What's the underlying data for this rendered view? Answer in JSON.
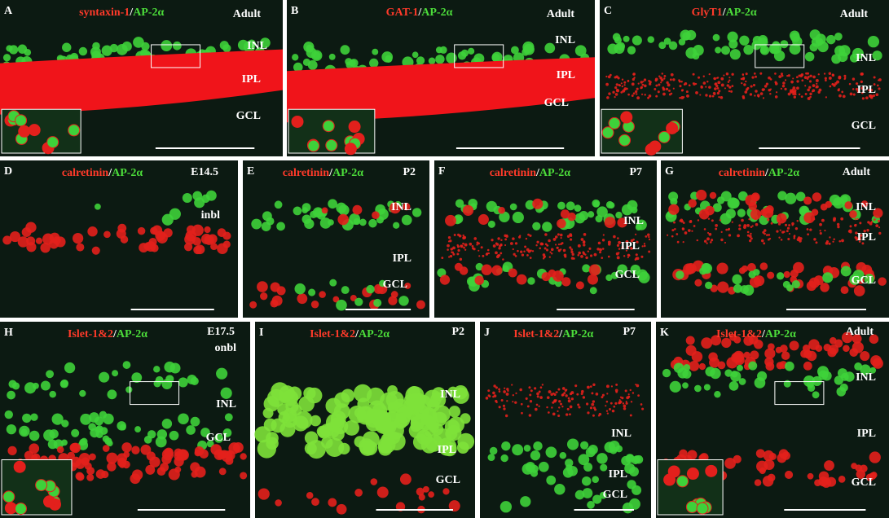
{
  "panels": [
    {
      "letter": "A",
      "red": "syntaxin-1",
      "sep": "/",
      "green": "AP-2α",
      "stage": "Adult",
      "layers": [
        "INL",
        "IPL",
        "GCL"
      ]
    },
    {
      "letter": "B",
      "red": "GAT-1",
      "sep": "/",
      "green": "AP-2α",
      "stage": "Adult",
      "layers": [
        "INL",
        "IPL",
        "GCL"
      ]
    },
    {
      "letter": "C",
      "red": "GlyT1",
      "sep": "/",
      "green": "AP-2α",
      "stage": "Adult",
      "layers": [
        "INL",
        "IPL",
        "GCL"
      ]
    },
    {
      "letter": "D",
      "red": "calretinin",
      "sep": "/",
      "green": "AP-2α",
      "stage": "E14.5",
      "layers": [
        "inbl"
      ]
    },
    {
      "letter": "E",
      "red": "calretinin",
      "sep": "/",
      "green": "AP-2α",
      "stage": "P2",
      "layers": [
        "INL",
        "IPL",
        "GCL"
      ]
    },
    {
      "letter": "F",
      "red": "calretinin",
      "sep": "/",
      "green": "AP-2α",
      "stage": "P7",
      "layers": [
        "INL",
        "IPL",
        "GCL"
      ]
    },
    {
      "letter": "G",
      "red": "calretinin",
      "sep": "/",
      "green": "AP-2α",
      "stage": "Adult",
      "layers": [
        "INL",
        "IPL",
        "GCL"
      ]
    },
    {
      "letter": "H",
      "red": "Islet-1&2",
      "sep": "/",
      "green": "AP-2α",
      "stage": "E17.5",
      "layers": [
        "onbl",
        "INL",
        "GCL"
      ]
    },
    {
      "letter": "I",
      "red": "Islet-1&2",
      "sep": "/",
      "green": "AP-2α",
      "stage": "P2",
      "layers": [
        "INL",
        "IPL",
        "GCL"
      ]
    },
    {
      "letter": "J",
      "red": "Islet-1&2",
      "sep": "/",
      "green": "AP-2α",
      "stage": "P7",
      "layers": [
        "INL",
        "IPL",
        "GCL"
      ]
    },
    {
      "letter": "K",
      "red": "Islet-1&2",
      "sep": "/",
      "green": "AP-2α",
      "stage": "Adult",
      "layers": [
        "INL",
        "IPL",
        "GCL"
      ]
    }
  ]
}
